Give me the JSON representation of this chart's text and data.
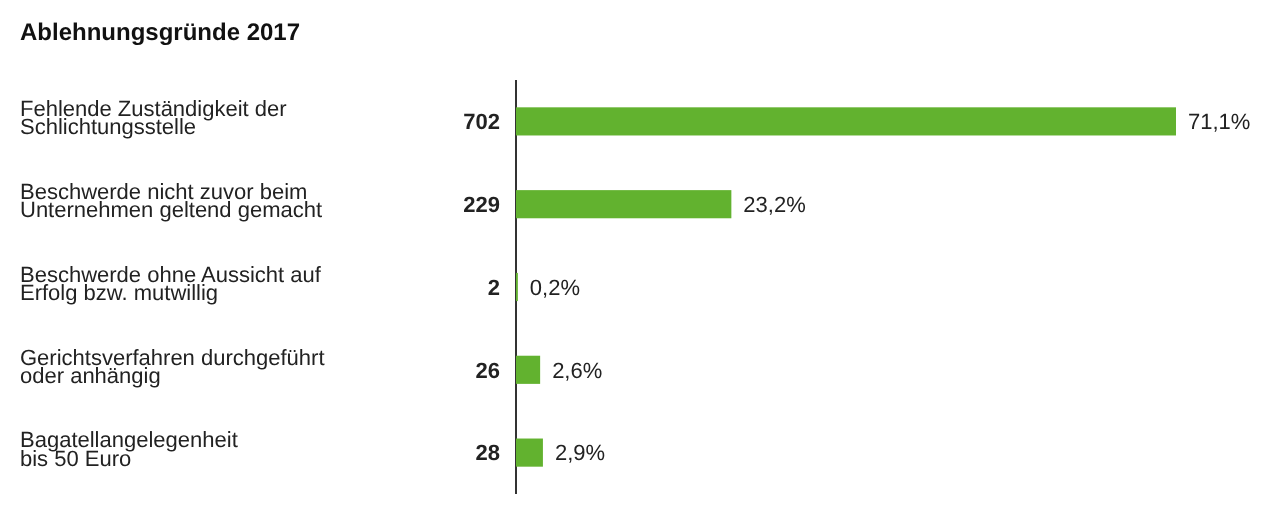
{
  "chart_data": {
    "type": "bar",
    "orientation": "horizontal",
    "title": "Ablehnungsgründe 2017",
    "categories": [
      "Fehlende Zuständigkeit der\nSchlichtungsstelle",
      "Beschwerde nicht zuvor beim\nUnternehmen geltend gemacht",
      "Beschwerde ohne Aussicht auf\nErfolg bzw. mutwillig",
      "Gerichtsverfahren durchgeführt\noder anhängig",
      "Bagatellangelegenheit\nbis 50 Euro"
    ],
    "values": [
      71.1,
      23.2,
      0.2,
      2.6,
      2.9
    ],
    "value_labels": [
      "71,1%",
      "23,2%",
      "0,2%",
      "2,6%",
      "2,9%"
    ],
    "annotations": [
      "702",
      "229",
      "2",
      "26",
      "28"
    ],
    "color": "#62b22f"
  }
}
